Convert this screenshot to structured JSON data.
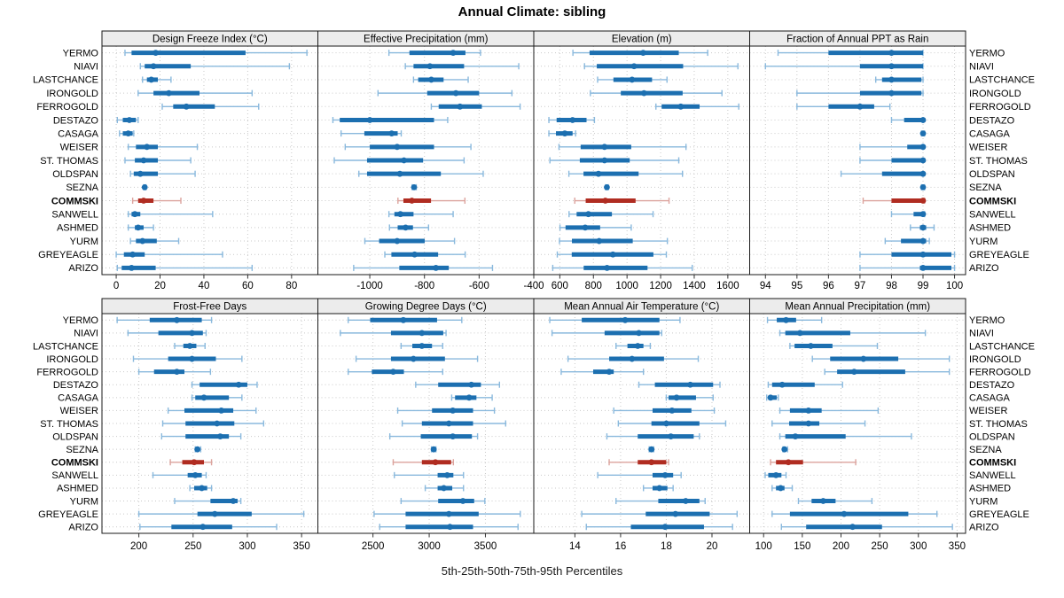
{
  "title": "Annual Climate: sibling",
  "footer": "5th-25th-50th-75th-95th Percentiles",
  "highlight_site": "COMMSKI",
  "colors": {
    "site_main": "#1c6fb0",
    "site_light": "#8ab9dd",
    "highlight_main": "#b02c21",
    "highlight_light": "#dca39d",
    "strip_bg": "#ececec",
    "panel_border": "#1a1a1a",
    "grid": "#c9c9c9",
    "tick": "#333333",
    "text": "#000000"
  },
  "sites": [
    "YERMO",
    "NIAVI",
    "LASTCHANCE",
    "IRONGOLD",
    "FERROGOLD",
    "DESTAZO",
    "CASAGA",
    "WEISER",
    "ST. THOMAS",
    "OLDSPAN",
    "SEZNA",
    "COMMSKI",
    "SANWELL",
    "ASHMED",
    "YURM",
    "GREYEAGLE",
    "ARIZO"
  ],
  "chart_data": {
    "type": "dotplot",
    "layout": "2x4 trellis, percentile whisker plots per site",
    "percentile_labels": [
      "5th",
      "25th",
      "50th",
      "75th",
      "95th"
    ],
    "legend_position": "none",
    "grid": "dotted",
    "panels": [
      {
        "title": "Design Freeze Index (°C)",
        "grid_row": 0,
        "grid_col": 0,
        "xlim": [
          -6.5,
          92
        ],
        "ticks": [
          0,
          20,
          40,
          60,
          80
        ],
        "values": {
          "YERMO": [
            4,
            7,
            18,
            59,
            87
          ],
          "NIAVI": [
            11,
            13,
            17,
            34,
            79
          ],
          "LASTCHANCE": [
            12,
            14,
            16,
            19,
            25
          ],
          "IRONGOLD": [
            10,
            17,
            24,
            38,
            62
          ],
          "FERROGOLD": [
            21,
            26,
            32,
            45,
            65
          ],
          "DESTAZO": [
            0.5,
            3,
            6,
            9,
            10
          ],
          "CASAGA": [
            1.5,
            3,
            5.5,
            7.5,
            8
          ],
          "WEISER": [
            5.5,
            9,
            14,
            19,
            37
          ],
          "ST. THOMAS": [
            4,
            8.5,
            12.5,
            19,
            34
          ],
          "OLDSPAN": [
            6.5,
            8,
            11,
            19,
            36
          ],
          "SEZNA": [
            12.5,
            12.8,
            13,
            13.3,
            13.6
          ],
          "COMMSKI": [
            7.5,
            10,
            12.5,
            17,
            29.5
          ],
          "SANWELL": [
            5.5,
            7,
            8.5,
            11,
            44
          ],
          "ASHMED": [
            5.5,
            8.5,
            10,
            12.5,
            17
          ],
          "YURM": [
            6.5,
            9,
            12,
            18.5,
            28.5
          ],
          "GREYEAGLE": [
            0,
            3.5,
            7.5,
            13,
            48.5
          ],
          "ARIZO": [
            0.5,
            2.5,
            7,
            18,
            62
          ]
        }
      },
      {
        "title": "Effective Precipitation (mm)",
        "grid_row": 0,
        "grid_col": 1,
        "xlim": [
          -1190,
          -400
        ],
        "ticks": [
          -1000,
          -800,
          -600,
          -400
        ],
        "values": {
          "YERMO": [
            -930,
            -855,
            -695,
            -650,
            -595
          ],
          "NIAVI": [
            -870,
            -840,
            -780,
            -655,
            -455
          ],
          "LASTCHANCE": [
            -840,
            -823,
            -775,
            -730,
            -640
          ],
          "IRONGOLD": [
            -970,
            -790,
            -685,
            -600,
            -480
          ],
          "FERROGOLD": [
            -775,
            -748,
            -670,
            -590,
            -450
          ],
          "DESTAZO": [
            -1135,
            -1110,
            -1000,
            -765,
            -715
          ],
          "CASAGA": [
            -1105,
            -1020,
            -920,
            -898,
            -885
          ],
          "WEISER": [
            -1090,
            -1000,
            -900,
            -765,
            -630
          ],
          "ST. THOMAS": [
            -1130,
            -1010,
            -875,
            -805,
            -655
          ],
          "OLDSPAN": [
            -1040,
            -1010,
            -890,
            -740,
            -585
          ],
          "SEZNA": [
            -845,
            -841,
            -838,
            -834,
            -830
          ],
          "COMMSKI": [
            -897,
            -877,
            -846,
            -776,
            -652
          ],
          "SANWELL": [
            -930,
            -910,
            -888,
            -840,
            -695
          ],
          "ASHMED": [
            -928,
            -898,
            -869,
            -842,
            -785
          ],
          "YURM": [
            -1018,
            -966,
            -900,
            -799,
            -690
          ],
          "GREYEAGLE": [
            -945,
            -921,
            -836,
            -750,
            -651
          ],
          "ARIZO": [
            -1059,
            -892,
            -758,
            -711,
            -551
          ]
        }
      },
      {
        "title": "Elevation (m)",
        "grid_row": 0,
        "grid_col": 2,
        "xlim": [
          445,
          1730
        ],
        "ticks": [
          600,
          800,
          1000,
          1200,
          1400,
          1600
        ],
        "values": {
          "YERMO": [
            678,
            777,
            1096,
            1308,
            1480
          ],
          "NIAVI": [
            747,
            820,
            1042,
            1334,
            1660
          ],
          "LASTCHANCE": [
            825,
            919,
            1030,
            1149,
            1238
          ],
          "IRONGOLD": [
            782,
            963,
            1101,
            1331,
            1565
          ],
          "FERROGOLD": [
            1172,
            1206,
            1320,
            1432,
            1665
          ],
          "DESTAZO": [
            535,
            581,
            676,
            759,
            806
          ],
          "CASAGA": [
            535,
            577,
            630,
            676,
            694
          ],
          "WEISER": [
            595,
            724,
            866,
            1025,
            1351
          ],
          "ST. THOMAS": [
            541,
            719,
            866,
            1016,
            1308
          ],
          "OLDSPAN": [
            654,
            741,
            830,
            1069,
            1330
          ],
          "SEZNA": [
            872,
            876,
            880,
            884,
            889
          ],
          "COMMSKI": [
            689,
            754,
            871,
            1051,
            1250
          ],
          "SANWELL": [
            655,
            700,
            770,
            910,
            1155
          ],
          "ASHMED": [
            601,
            634,
            751,
            840,
            1025
          ],
          "YURM": [
            598,
            672,
            834,
            1034,
            1240
          ],
          "GREYEAGLE": [
            585,
            671,
            916,
            1157,
            1234
          ],
          "ARIZO": [
            558,
            742,
            881,
            1122,
            1388
          ]
        }
      },
      {
        "title": "Fraction of Annual PPT as Rain",
        "grid_row": 0,
        "grid_col": 3,
        "xlim": [
          93.5,
          100.35
        ],
        "ticks": [
          94,
          95,
          96,
          97,
          98,
          99,
          100
        ],
        "values": {
          "YERMO": [
            94.4,
            96.0,
            98.0,
            99.0,
            99.0
          ],
          "NIAVI": [
            94.0,
            97.0,
            98.0,
            99.0,
            99.0
          ],
          "LASTCHANCE": [
            97.5,
            97.7,
            98.0,
            98.95,
            99.0
          ],
          "IRONGOLD": [
            95.0,
            97.0,
            98.0,
            98.95,
            99.0
          ],
          "FERROGOLD": [
            95.0,
            96.0,
            97.0,
            97.45,
            97.95
          ],
          "DESTAZO": [
            98.0,
            98.4,
            99.0,
            99.0,
            99.0
          ],
          "CASAGA": [
            98.95,
            99.0,
            99.0,
            99.0,
            99.05
          ],
          "WEISER": [
            97.0,
            98.5,
            99.0,
            99.0,
            99.0
          ],
          "ST. THOMAS": [
            97.0,
            98.0,
            99.0,
            99.0,
            99.0
          ],
          "OLDSPAN": [
            96.4,
            97.7,
            99.0,
            99.0,
            99.0
          ],
          "SEZNA": [
            98.95,
            99.0,
            99.0,
            99.0,
            99.05
          ],
          "COMMSKI": [
            97.1,
            98.0,
            99.0,
            99.0,
            99.05
          ],
          "SANWELL": [
            98.0,
            98.7,
            99.0,
            99.0,
            99.05
          ],
          "ASHMED": [
            98.6,
            98.9,
            99.0,
            99.1,
            99.35
          ],
          "YURM": [
            97.8,
            98.3,
            99.0,
            99.1,
            99.2
          ],
          "GREYEAGLE": [
            97.0,
            98.0,
            99.0,
            99.9,
            100.0
          ],
          "ARIZO": [
            97.0,
            98.9,
            99.0,
            99.9,
            100.0
          ]
        }
      },
      {
        "title": "Frost-Free Days",
        "grid_row": 1,
        "grid_col": 0,
        "xlim": [
          166,
          365
        ],
        "ticks": [
          200,
          250,
          300,
          350
        ],
        "values": {
          "YERMO": [
            180,
            210,
            235,
            258,
            267
          ],
          "NIAVI": [
            190,
            218,
            249,
            259,
            262
          ],
          "LASTCHANCE": [
            233,
            241,
            247,
            253,
            261
          ],
          "IRONGOLD": [
            195,
            227,
            249,
            271,
            295
          ],
          "FERROGOLD": [
            200,
            214,
            235,
            242,
            266
          ],
          "DESTAZO": [
            249,
            256,
            292,
            300,
            309
          ],
          "CASAGA": [
            249,
            252,
            260,
            283,
            295
          ],
          "WEISER": [
            227,
            242,
            276,
            287,
            308
          ],
          "ST. THOMAS": [
            222,
            243,
            272,
            288,
            315
          ],
          "OLDSPAN": [
            221,
            243,
            275,
            283,
            294
          ],
          "SEZNA": [
            252,
            253,
            254,
            255,
            257
          ],
          "COMMSKI": [
            229,
            240,
            251,
            260,
            267
          ],
          "SANWELL": [
            213,
            245,
            252,
            258,
            262
          ],
          "ASHMED": [
            247,
            251,
            258,
            263,
            267
          ],
          "YURM": [
            233,
            266,
            287,
            291,
            294
          ],
          "GREYEAGLE": [
            200,
            254,
            270,
            304,
            352
          ],
          "ARIZO": [
            201,
            230,
            259,
            286,
            327
          ]
        }
      },
      {
        "title": "Growing Degree Days (°C)",
        "grid_row": 1,
        "grid_col": 1,
        "xlim": [
          2010,
          3930
        ],
        "ticks": [
          2500,
          3000,
          3500
        ],
        "values": {
          "YERMO": [
            2280,
            2475,
            2770,
            3070,
            3290
          ],
          "NIAVI": [
            2210,
            2660,
            2935,
            3125,
            3150
          ],
          "LASTCHANCE": [
            2750,
            2850,
            2935,
            3025,
            3120
          ],
          "IRONGOLD": [
            2350,
            2660,
            2860,
            3140,
            3430
          ],
          "FERROGOLD": [
            2280,
            2490,
            2680,
            2775,
            3120
          ],
          "DESTAZO": [
            2880,
            3080,
            3375,
            3460,
            3625
          ],
          "CASAGA": [
            3200,
            3230,
            3355,
            3420,
            3560
          ],
          "WEISER": [
            2720,
            3025,
            3210,
            3390,
            3580
          ],
          "ST. THOMAS": [
            2760,
            2935,
            3175,
            3390,
            3680
          ],
          "OLDSPAN": [
            2650,
            2925,
            3210,
            3380,
            3430
          ],
          "SEZNA": [
            3020,
            3030,
            3040,
            3050,
            3060
          ],
          "COMMSKI": [
            2680,
            2935,
            3055,
            3195,
            3215
          ],
          "SANWELL": [
            2690,
            3075,
            3160,
            3215,
            3305
          ],
          "ASHMED": [
            2965,
            3075,
            3130,
            3205,
            3305
          ],
          "YURM": [
            2750,
            3080,
            3300,
            3400,
            3495
          ],
          "GREYEAGLE": [
            2510,
            2790,
            3175,
            3440,
            3810
          ],
          "ARIZO": [
            2560,
            2790,
            3185,
            3390,
            3790
          ]
        }
      },
      {
        "title": "Mean Annual Air Temperature (°C)",
        "grid_row": 1,
        "grid_col": 2,
        "xlim": [
          12.2,
          21.65
        ],
        "ticks": [
          14,
          16,
          18,
          20
        ],
        "values": {
          "YERMO": [
            12.9,
            14.3,
            16.2,
            17.7,
            18.6
          ],
          "NIAVI": [
            13.0,
            15.3,
            16.8,
            17.7,
            17.8
          ],
          "LASTCHANCE": [
            15.8,
            16.3,
            16.75,
            17.0,
            17.3
          ],
          "IRONGOLD": [
            13.7,
            15.5,
            16.5,
            17.9,
            19.4
          ],
          "FERROGOLD": [
            13.4,
            14.8,
            15.5,
            15.7,
            17.0
          ],
          "DESTAZO": [
            16.8,
            17.5,
            19.05,
            20.05,
            20.35
          ],
          "CASAGA": [
            18.0,
            18.1,
            18.45,
            19.3,
            20.05
          ],
          "WEISER": [
            15.7,
            17.4,
            18.25,
            19.1,
            20.1
          ],
          "ST. THOMAS": [
            15.9,
            17.35,
            18.0,
            19.45,
            20.6
          ],
          "OLDSPAN": [
            15.4,
            16.75,
            18.2,
            19.2,
            19.45
          ],
          "SEZNA": [
            17.25,
            17.3,
            17.35,
            17.4,
            17.45
          ],
          "COMMSKI": [
            15.5,
            16.75,
            17.35,
            18.0,
            18.1
          ],
          "SANWELL": [
            15.0,
            17.4,
            17.95,
            18.3,
            18.65
          ],
          "ASHMED": [
            17.0,
            17.4,
            17.7,
            18.05,
            18.3
          ],
          "YURM": [
            15.8,
            17.65,
            18.85,
            19.45,
            19.7
          ],
          "GREYEAGLE": [
            14.3,
            17.1,
            18.4,
            19.9,
            21.1
          ],
          "ARIZO": [
            14.5,
            16.45,
            17.95,
            19.65,
            20.9
          ]
        }
      },
      {
        "title": "Mean Annual Precipitation (mm)",
        "grid_row": 1,
        "grid_col": 3,
        "xlim": [
          82,
          361
        ],
        "ticks": [
          100,
          150,
          200,
          250,
          300,
          350
        ],
        "values": {
          "YERMO": [
            105,
            117,
            129,
            142,
            175
          ],
          "NIAVI": [
            121,
            128,
            147,
            212,
            309
          ],
          "LASTCHANCE": [
            134,
            140,
            161,
            189,
            247
          ],
          "IRONGOLD": [
            163,
            186,
            229,
            274,
            340
          ],
          "FERROGOLD": [
            179,
            195,
            217,
            283,
            340
          ],
          "DESTAZO": [
            106,
            111,
            124,
            166,
            202
          ],
          "CASAGA": [
            104,
            106,
            109,
            117,
            119
          ],
          "WEISER": [
            121,
            134,
            158,
            175,
            248
          ],
          "ST. THOMAS": [
            111,
            133,
            158,
            172,
            231
          ],
          "OLDSPAN": [
            121,
            128,
            141,
            206,
            291
          ],
          "SEZNA": [
            125,
            126,
            127,
            129,
            131
          ],
          "COMMSKI": [
            109,
            116,
            132,
            151,
            219
          ],
          "SANWELL": [
            102,
            106,
            116,
            123,
            129
          ],
          "ASHMED": [
            111,
            116,
            122,
            127,
            137
          ],
          "YURM": [
            145,
            162,
            177,
            193,
            240
          ],
          "GREYEAGLE": [
            111,
            134,
            204,
            287,
            324
          ],
          "ARIZO": [
            123,
            155,
            215,
            253,
            344
          ]
        }
      }
    ]
  }
}
